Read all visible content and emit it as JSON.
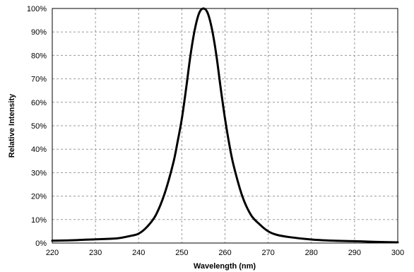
{
  "chart_data": {
    "type": "line",
    "title": "",
    "xlabel": "Wavelength  (nm)",
    "ylabel": "Relative Intensity",
    "xlim": [
      220,
      300
    ],
    "ylim": [
      0,
      100
    ],
    "x_ticks": [
      "220",
      "230",
      "240",
      "250",
      "260",
      "270",
      "280",
      "290",
      "300"
    ],
    "y_ticks": [
      "0%",
      "10%",
      "20%",
      "30%",
      "40%",
      "50%",
      "60%",
      "70%",
      "80%",
      "90%",
      "100%"
    ],
    "grid": true,
    "legend": "none",
    "series_color": "#000000",
    "series": [
      {
        "x": [
          220,
          225,
          230,
          235,
          238,
          240,
          242,
          244,
          246,
          248,
          249,
          250,
          251,
          252,
          253,
          254,
          255,
          256,
          257,
          258,
          259,
          260,
          261,
          262,
          264,
          266,
          268,
          270,
          272,
          275,
          280,
          285,
          290,
          295,
          300
        ],
        "y": [
          1,
          1.2,
          1.6,
          2,
          3,
          4,
          7,
          12,
          21,
          34,
          43,
          53,
          66,
          80,
          91,
          98,
          100,
          98,
          91,
          80,
          66,
          53,
          42,
          33,
          20,
          12,
          8,
          5,
          3.5,
          2.5,
          1.5,
          1,
          0.8,
          0.5,
          0.3
        ]
      }
    ]
  }
}
